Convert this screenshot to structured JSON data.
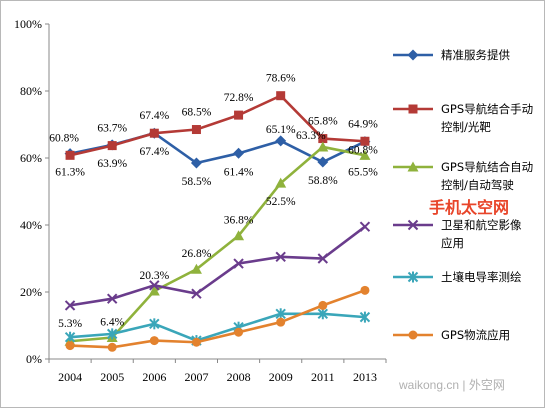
{
  "chart_data": {
    "type": "line",
    "x": [
      "2004",
      "2005",
      "2006",
      "2007",
      "2008",
      "2009",
      "2011",
      "2013"
    ],
    "ylim": [
      0,
      100
    ],
    "yticks": [
      "0%",
      "20%",
      "40%",
      "60%",
      "80%",
      "100%"
    ],
    "yticks_values": [
      0,
      20,
      40,
      60,
      80,
      100
    ],
    "grid": false,
    "legend": "right",
    "series": [
      {
        "name": "精准服务提供",
        "color": "#2e5fa6",
        "marker": "diamond",
        "values": [
          61.3,
          63.9,
          67.4,
          58.5,
          61.4,
          65.1,
          58.8,
          64.9
        ],
        "labels": [
          "61.3%",
          "63.9%",
          "67.4%",
          "58.5%",
          "61.4%",
          "65.1%",
          "58.8%",
          "64.9%"
        ]
      },
      {
        "name": "GPS导航结合手动控制/光靶",
        "color": "#b43a36",
        "marker": "square",
        "values": [
          60.8,
          63.7,
          67.4,
          68.5,
          72.8,
          78.6,
          65.8,
          65.0
        ],
        "labels": [
          "60.8%",
          "63.7%",
          "67.4%",
          "68.5%",
          "72.8%",
          "78.6%",
          "65.8%",
          ""
        ]
      },
      {
        "name": "GPS导航结合自动控制/自动驾驶",
        "color": "#8fb23c",
        "marker": "triangle",
        "values": [
          5.3,
          6.4,
          20.3,
          26.8,
          36.8,
          52.5,
          63.3,
          60.8
        ],
        "labels": [
          "5.3%",
          "6.4%",
          "20.3%",
          "26.8%",
          "36.8%",
          "52.5%",
          "63.3%",
          "60.8%"
        ]
      },
      {
        "name": "卫星和航空影像应用",
        "color": "#6a3c8c",
        "marker": "x",
        "values": [
          16.0,
          18.0,
          22.0,
          19.5,
          28.5,
          30.5,
          30.0,
          39.5
        ],
        "labels": []
      },
      {
        "name": "土壤电导率测绘",
        "color": "#3aa6b9",
        "marker": "star",
        "values": [
          6.5,
          7.5,
          10.5,
          5.5,
          9.5,
          13.5,
          13.5,
          12.5
        ],
        "labels": []
      },
      {
        "name": "GPS物流应用",
        "color": "#e3822e",
        "marker": "circle",
        "values": [
          4.0,
          3.5,
          5.5,
          5.0,
          8.0,
          11.0,
          16.0,
          20.5
        ],
        "labels": []
      }
    ],
    "extra_label": "65.5%"
  },
  "watermark": {
    "red_text": "手机太空网",
    "footer": "waikong.cn | 外空网"
  }
}
